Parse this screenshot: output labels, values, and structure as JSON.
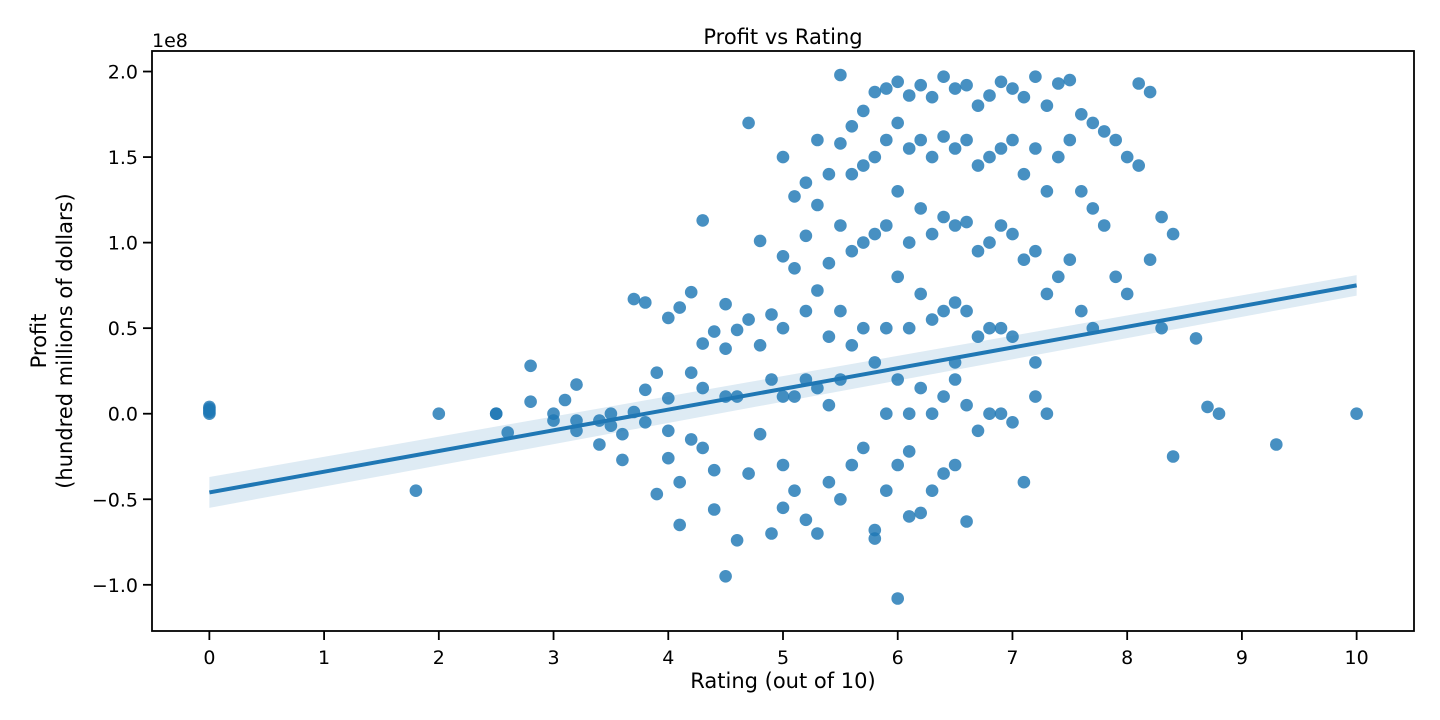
{
  "chart_data": {
    "type": "scatter",
    "title": "Profit vs Rating",
    "xlabel": "Rating (out of 10)",
    "ylabel_line1": "Profit",
    "ylabel_line2": "(hundred millions of dollars)",
    "y_offset_label": "1e8",
    "xlim": [
      -0.5,
      10.5
    ],
    "ylim": [
      -1.27,
      2.12
    ],
    "xticks": [
      0,
      1,
      2,
      3,
      4,
      5,
      6,
      7,
      8,
      9,
      10
    ],
    "yticks": [
      -1.0,
      -0.5,
      0.0,
      0.5,
      1.0,
      1.5,
      2.0
    ],
    "ytick_labels": [
      "−1.0",
      "−0.5",
      "0.0",
      "0.5",
      "1.0",
      "1.5",
      "2.0"
    ],
    "grid": false,
    "legend": "none",
    "point_color": "#1f77b4",
    "regression": {
      "x": [
        0,
        10
      ],
      "y": [
        -0.46,
        0.75
      ],
      "ci_low": [
        -0.55,
        0.69
      ],
      "ci_high": [
        -0.37,
        0.81
      ]
    },
    "points": {
      "x": [
        0,
        0,
        0,
        0,
        0,
        1.8,
        2,
        2.5,
        2.5,
        2.6,
        2.8,
        2.8,
        3,
        3,
        3.1,
        3.2,
        3.2,
        3.2,
        3.4,
        3.4,
        3.5,
        3.5,
        3.6,
        3.6,
        3.7,
        3.7,
        3.8,
        3.8,
        3.8,
        3.9,
        3.9,
        4,
        4,
        4,
        4,
        4.1,
        4.1,
        4.1,
        4.2,
        4.2,
        4.2,
        4.3,
        4.3,
        4.3,
        4.3,
        4.4,
        4.4,
        4.4,
        4.5,
        4.5,
        4.5,
        4.5,
        4.6,
        4.6,
        4.6,
        4.7,
        4.7,
        4.7,
        4.8,
        4.8,
        4.8,
        4.9,
        4.9,
        4.9,
        5,
        5,
        5,
        5,
        5,
        5,
        5.1,
        5.1,
        5.1,
        5.1,
        5.2,
        5.2,
        5.2,
        5.2,
        5.2,
        5.3,
        5.3,
        5.3,
        5.3,
        5.3,
        5.4,
        5.4,
        5.4,
        5.4,
        5.4,
        5.5,
        5.5,
        5.5,
        5.5,
        5.5,
        5.5,
        5.6,
        5.6,
        5.6,
        5.6,
        5.6,
        5.7,
        5.7,
        5.7,
        5.7,
        5.7,
        5.8,
        5.8,
        5.8,
        5.8,
        5.8,
        5.8,
        5.9,
        5.9,
        5.9,
        5.9,
        5.9,
        5.9,
        6,
        6,
        6,
        6,
        6,
        6,
        6,
        6.1,
        6.1,
        6.1,
        6.1,
        6.1,
        6.1,
        6.2,
        6.2,
        6.2,
        6.2,
        6.2,
        6.2,
        6.3,
        6.3,
        6.3,
        6.3,
        6.3,
        6.3,
        6.4,
        6.4,
        6.4,
        6.4,
        6.4,
        6.4,
        6.5,
        6.5,
        6.5,
        6.5,
        6.5,
        6.5,
        6.6,
        6.6,
        6.6,
        6.6,
        6.6,
        6.6,
        6.7,
        6.7,
        6.7,
        6.7,
        6.7,
        6.8,
        6.8,
        6.8,
        6.8,
        6.8,
        6.9,
        6.9,
        6.9,
        6.9,
        6.9,
        7,
        7,
        7,
        7,
        7,
        7.1,
        7.1,
        7.1,
        7.1,
        7.2,
        7.2,
        7.2,
        7.2,
        7.3,
        7.3,
        7.3,
        7.3,
        7.4,
        7.4,
        7.4,
        7.5,
        7.5,
        7.5,
        7.6,
        7.6,
        7.6,
        7.7,
        7.7,
        7.7,
        7.8,
        7.8,
        7.9,
        7.9,
        8,
        8,
        8.1,
        8.1,
        8.2,
        8.2,
        8.3,
        8.3,
        8.4,
        8.4,
        8.6,
        8.7,
        8.8,
        9.3,
        10,
        6.1,
        6.5,
        7.2
      ],
      "y": [
        0.04,
        0.03,
        0.02,
        0.01,
        0,
        -0.45,
        0,
        0,
        0,
        -0.11,
        0.28,
        0.07,
        0,
        -0.04,
        0.08,
        0.17,
        -0.04,
        -0.1,
        -0.04,
        -0.18,
        0,
        -0.07,
        -0.27,
        -0.12,
        0.67,
        0.01,
        0.65,
        0.14,
        -0.05,
        0.24,
        -0.47,
        0.56,
        0.09,
        -0.26,
        -0.1,
        0.62,
        -0.4,
        -0.65,
        0.71,
        0.24,
        -0.15,
        1.13,
        0.41,
        0.15,
        -0.2,
        0.48,
        -0.33,
        -0.56,
        0.64,
        0.38,
        0.1,
        -0.95,
        0.49,
        0.1,
        -0.74,
        1.7,
        0.55,
        -0.35,
        1.01,
        0.4,
        -0.12,
        0.58,
        0.2,
        -0.7,
        1.5,
        0.92,
        0.5,
        0.1,
        -0.3,
        -0.55,
        1.27,
        0.85,
        0.1,
        -0.45,
        1.35,
        1.04,
        0.6,
        0.2,
        -0.62,
        1.6,
        1.22,
        0.72,
        0.15,
        -0.7,
        1.4,
        0.88,
        0.45,
        0.05,
        -0.4,
        1.98,
        1.58,
        1.1,
        0.6,
        0.2,
        -0.5,
        1.68,
        1.4,
        0.95,
        0.4,
        -0.3,
        1.77,
        1.45,
        1.0,
        0.5,
        -0.2,
        1.88,
        1.5,
        1.05,
        0.3,
        -0.68,
        -0.73,
        1.9,
        1.6,
        1.1,
        0.5,
        0.0,
        -0.45,
        1.94,
        1.7,
        1.3,
        0.8,
        0.2,
        -0.3,
        -1.08,
        1.86,
        1.55,
        1.0,
        0.5,
        0.0,
        -0.6,
        1.92,
        1.6,
        1.2,
        0.7,
        0.15,
        -0.58,
        1.85,
        1.5,
        1.05,
        0.55,
        0.0,
        -0.45,
        1.97,
        1.62,
        1.15,
        0.6,
        0.1,
        -0.35,
        1.9,
        1.55,
        1.1,
        0.65,
        0.2,
        -0.3,
        1.92,
        1.6,
        1.12,
        0.6,
        0.05,
        -0.63,
        1.8,
        1.45,
        0.95,
        0.45,
        -0.1,
        1.86,
        1.5,
        1.0,
        0.5,
        0.0,
        1.94,
        1.55,
        1.1,
        0.5,
        0.0,
        1.9,
        1.6,
        1.05,
        0.45,
        -0.05,
        1.85,
        1.4,
        0.9,
        -0.4,
        1.97,
        1.55,
        0.95,
        0.3,
        1.8,
        1.3,
        0.7,
        0.0,
        1.93,
        1.5,
        0.8,
        1.95,
        1.6,
        0.9,
        1.75,
        1.3,
        0.6,
        1.7,
        1.2,
        0.5,
        1.65,
        1.1,
        1.6,
        0.8,
        1.5,
        0.7,
        1.93,
        1.45,
        1.88,
        0.9,
        1.15,
        0.5,
        1.05,
        -0.25,
        0.44,
        0.04,
        0.0,
        -0.18,
        0.0,
        -0.22,
        0.3,
        0.1
      ]
    }
  }
}
